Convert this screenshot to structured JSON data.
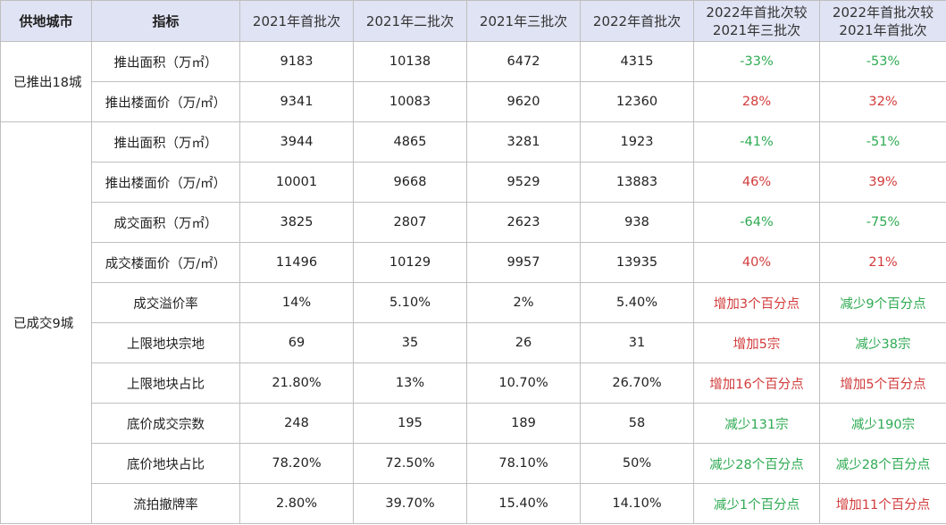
{
  "headers": {
    "city": "供地城市",
    "indicator": "指标",
    "batch_2021_first": "2021年首批次",
    "batch_2021_second": "2021年二批次",
    "batch_2021_third": "2021年三批次",
    "batch_2022_first": "2022年首批次",
    "compare_vs_2021_third": "2022年首批次较 2021年三批次",
    "compare_vs_2021_first": "2022年首批次较 2021年首批次"
  },
  "groups": [
    {
      "city": "已推出18城",
      "rows": [
        {
          "indicator": "推出面积（万㎡）",
          "v2021_1": "9183",
          "v2021_2": "10138",
          "v2021_3": "6472",
          "v2022_1": "4315",
          "vs_2021_3": "-33%",
          "vs_2021_3_trend": "down",
          "vs_2021_1": "-53%",
          "vs_2021_1_trend": "down"
        },
        {
          "indicator": "推出楼面价（万/㎡）",
          "v2021_1": "9341",
          "v2021_2": "10083",
          "v2021_3": "9620",
          "v2022_1": "12360",
          "vs_2021_3": "28%",
          "vs_2021_3_trend": "up",
          "vs_2021_1": "32%",
          "vs_2021_1_trend": "up"
        }
      ]
    },
    {
      "city": "已成交9城",
      "rows": [
        {
          "indicator": "推出面积（万㎡）",
          "v2021_1": "3944",
          "v2021_2": "4865",
          "v2021_3": "3281",
          "v2022_1": "1923",
          "vs_2021_3": "-41%",
          "vs_2021_3_trend": "down",
          "vs_2021_1": "-51%",
          "vs_2021_1_trend": "down"
        },
        {
          "indicator": "推出楼面价（万/㎡）",
          "v2021_1": "10001",
          "v2021_2": "9668",
          "v2021_3": "9529",
          "v2022_1": "13883",
          "vs_2021_3": "46%",
          "vs_2021_3_trend": "up",
          "vs_2021_1": "39%",
          "vs_2021_1_trend": "up"
        },
        {
          "indicator": "成交面积（万㎡）",
          "v2021_1": "3825",
          "v2021_2": "2807",
          "v2021_3": "2623",
          "v2022_1": "938",
          "vs_2021_3": "-64%",
          "vs_2021_3_trend": "down",
          "vs_2021_1": "-75%",
          "vs_2021_1_trend": "down"
        },
        {
          "indicator": "成交楼面价（万/㎡）",
          "v2021_1": "11496",
          "v2021_2": "10129",
          "v2021_3": "9957",
          "v2022_1": "13935",
          "vs_2021_3": "40%",
          "vs_2021_3_trend": "up",
          "vs_2021_1": "21%",
          "vs_2021_1_trend": "up"
        },
        {
          "indicator": "成交溢价率",
          "v2021_1": "14%",
          "v2021_2": "5.10%",
          "v2021_3": "2%",
          "v2022_1": "5.40%",
          "vs_2021_3": "增加3个百分点",
          "vs_2021_3_trend": "up",
          "vs_2021_1": "减少9个百分点",
          "vs_2021_1_trend": "down"
        },
        {
          "indicator": "上限地块宗地",
          "v2021_1": "69",
          "v2021_2": "35",
          "v2021_3": "26",
          "v2022_1": "31",
          "vs_2021_3": "增加5宗",
          "vs_2021_3_trend": "up",
          "vs_2021_1": "减少38宗",
          "vs_2021_1_trend": "down"
        },
        {
          "indicator": "上限地块占比",
          "v2021_1": "21.80%",
          "v2021_2": "13%",
          "v2021_3": "10.70%",
          "v2022_1": "26.70%",
          "vs_2021_3": "增加16个百分点",
          "vs_2021_3_trend": "up",
          "vs_2021_1": "增加5个百分点",
          "vs_2021_1_trend": "up"
        },
        {
          "indicator": "底价成交宗数",
          "v2021_1": "248",
          "v2021_2": "195",
          "v2021_3": "189",
          "v2022_1": "58",
          "vs_2021_3": "减少131宗",
          "vs_2021_3_trend": "down",
          "vs_2021_1": "减少190宗",
          "vs_2021_1_trend": "down"
        },
        {
          "indicator": "底价地块占比",
          "v2021_1": "78.20%",
          "v2021_2": "72.50%",
          "v2021_3": "78.10%",
          "v2022_1": "50%",
          "vs_2021_3": "减少28个百分点",
          "vs_2021_3_trend": "down",
          "vs_2021_1": "减少28个百分点",
          "vs_2021_1_trend": "down"
        },
        {
          "indicator": "流拍撤牌率",
          "v2021_1": "2.80%",
          "v2021_2": "39.70%",
          "v2021_3": "15.40%",
          "v2022_1": "14.10%",
          "vs_2021_3": "减少1个百分点",
          "vs_2021_3_trend": "down",
          "vs_2021_1": "增加11个百分点",
          "vs_2021_1_trend": "up"
        }
      ]
    }
  ],
  "colors": {
    "header_bg": "#dfe3f3",
    "grid_line": "#bfbfbf",
    "increase": "#d23b3b",
    "decrease": "#2eaa52"
  }
}
